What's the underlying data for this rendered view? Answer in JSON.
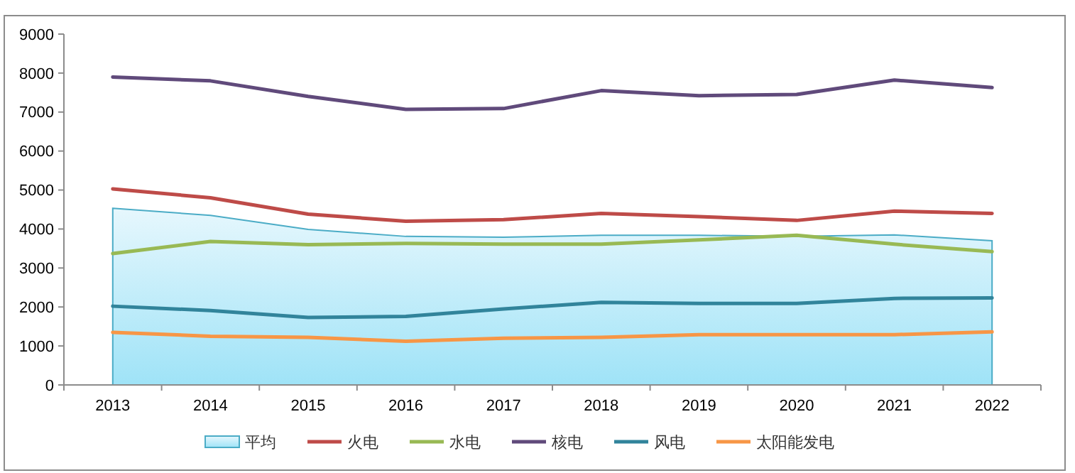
{
  "chart_data": {
    "type": "line",
    "categories": [
      "2013",
      "2014",
      "2015",
      "2016",
      "2017",
      "2018",
      "2019",
      "2020",
      "2021",
      "2022"
    ],
    "series": [
      {
        "name": "平均",
        "type": "area",
        "color": "#4bacc6",
        "values": [
          4530,
          4350,
          3990,
          3810,
          3790,
          3840,
          3840,
          3810,
          3850,
          3700
        ]
      },
      {
        "name": "火电",
        "color": "#be4b48",
        "values": [
          5030,
          4800,
          4380,
          4200,
          4240,
          4400,
          4320,
          4220,
          4460,
          4400
        ]
      },
      {
        "name": "水电",
        "color": "#98b954",
        "values": [
          3370,
          3680,
          3600,
          3630,
          3610,
          3610,
          3720,
          3840,
          3610,
          3420
        ]
      },
      {
        "name": "核电",
        "color": "#604a7b",
        "values": [
          7900,
          7800,
          7400,
          7070,
          7090,
          7550,
          7420,
          7450,
          7820,
          7630
        ]
      },
      {
        "name": "风电",
        "color": "#31849b",
        "values": [
          2020,
          1910,
          1730,
          1760,
          1950,
          2120,
          2090,
          2090,
          2220,
          2230
        ]
      },
      {
        "name": "太阳能发电",
        "color": "#f79646",
        "values": [
          1350,
          1250,
          1220,
          1120,
          1200,
          1220,
          1290,
          1290,
          1290,
          1360
        ]
      }
    ],
    "ylim": [
      0,
      9000
    ],
    "yticks": [
      0,
      1000,
      2000,
      3000,
      4000,
      5000,
      6000,
      7000,
      8000,
      9000
    ],
    "grid": false,
    "legend": "bottom"
  }
}
